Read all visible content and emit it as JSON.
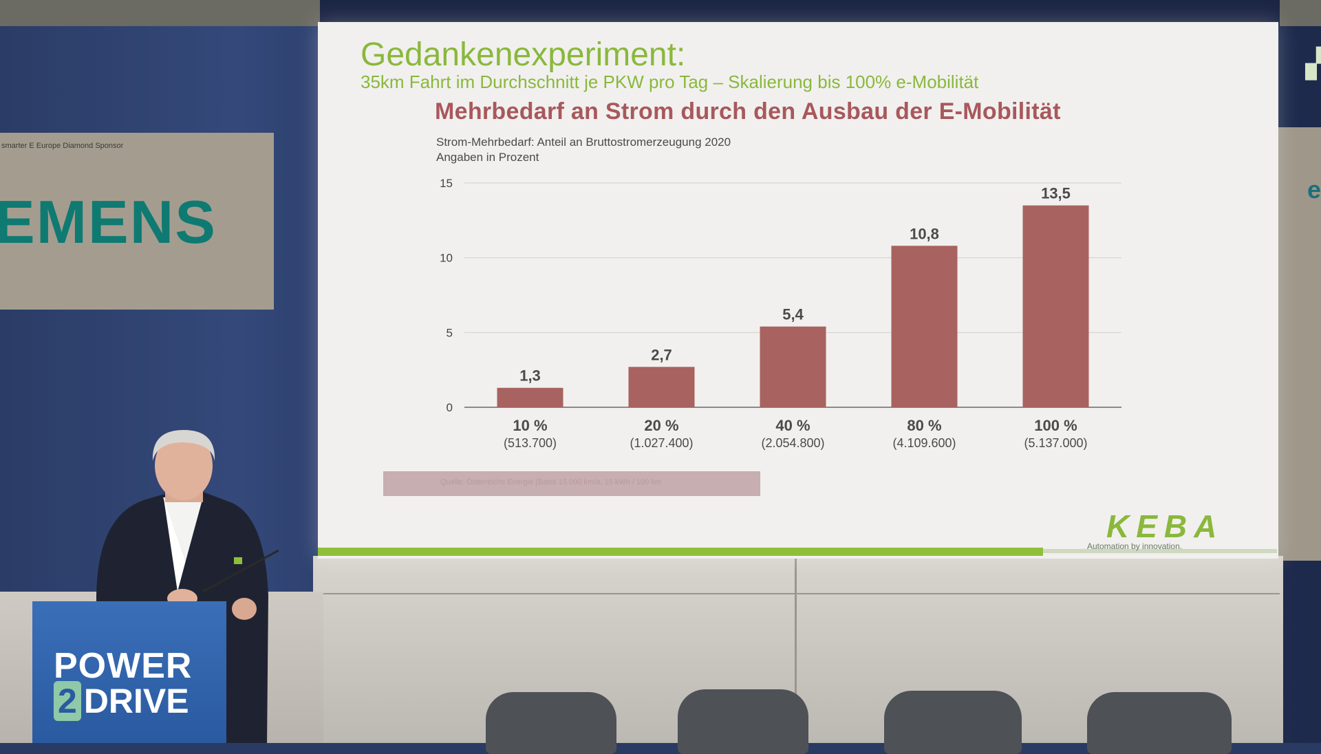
{
  "sponsor": {
    "small_text": "smarter E Europe Diamond Sponsor",
    "logo_text": "EMENS"
  },
  "slide": {
    "title": "Gedankenexperiment:",
    "subtitle": "35km Fahrt im Durchschnitt je PKW pro Tag –  Skalierung bis 100% e-Mobilität",
    "heading": "Mehrbedarf an Strom durch den Ausbau der E-Mobilität",
    "note_line1": "Strom-Mehrbedarf: Anteil an Bruttostromerzeugung 2020",
    "note_line2": "Angaben in Prozent",
    "source": "Quelle: Österreichs Energie (Basis 15.000 km/a, 15 kWh / 100 km",
    "brand": "KEBA",
    "brand_tagline": "Automation by innovation."
  },
  "chart_data": {
    "type": "bar",
    "categories": [
      "10 %",
      "20 %",
      "40 %",
      "80 %",
      "100 %"
    ],
    "category_sublabels": [
      "(513.700)",
      "(1.027.400)",
      "(2.054.800)",
      "(4.109.600)",
      "(5.137.000)"
    ],
    "values": [
      1.3,
      2.7,
      5.4,
      10.8,
      13.5
    ],
    "value_labels": [
      "1,3",
      "2,7",
      "5,4",
      "10,8",
      "13,5"
    ],
    "yticks": [
      0,
      5,
      10,
      15
    ],
    "ylim": [
      0,
      15
    ],
    "grid": true,
    "bar_color": "#a8625f"
  },
  "podium": {
    "word1": "POWER",
    "digit": "2",
    "word2": "DRIVE"
  },
  "colors": {
    "slide_green": "#8ab83c",
    "heading_red": "#a8585c",
    "podium_blue": "#2a5aa0"
  }
}
